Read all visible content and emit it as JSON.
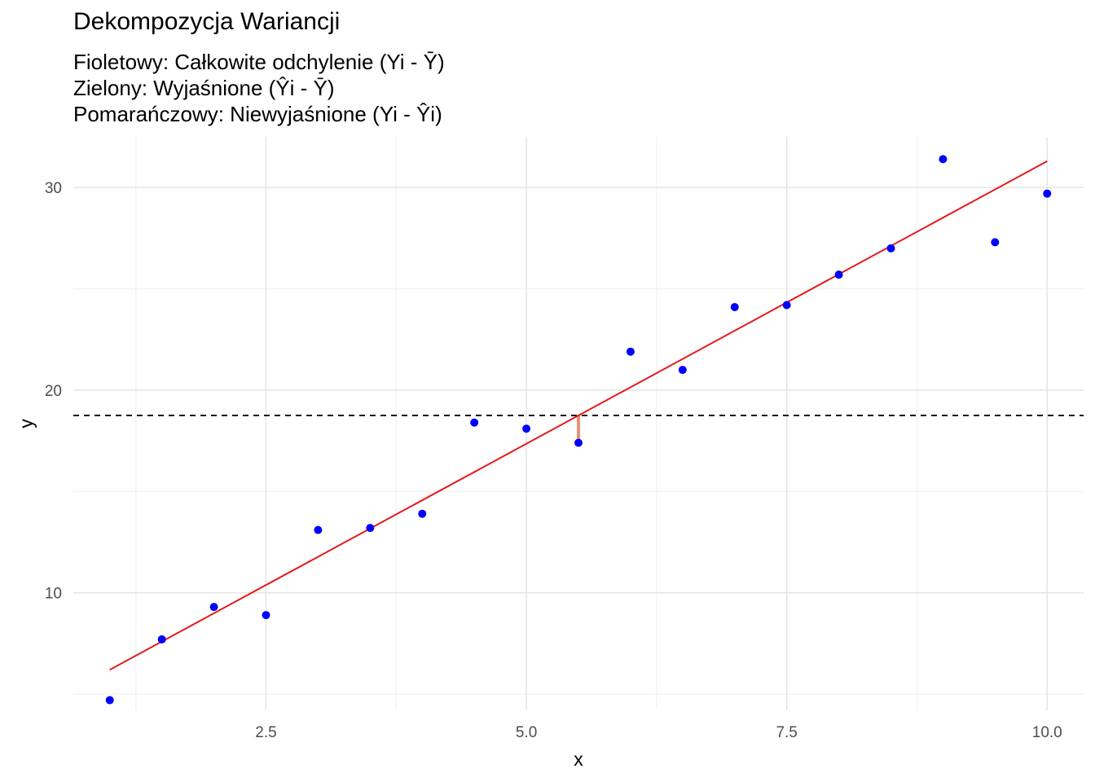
{
  "chart_data": {
    "type": "scatter",
    "title": "Dekompozycja Wariancji",
    "subtitle_lines": [
      "Fioletowy: Całkowite odchylenie (Yi - Ȳ)",
      "Zielony: Wyjaśnione (Ŷi - Ȳ)",
      "Pomarańczowy: Niewyjaśnione (Yi - Ŷi)"
    ],
    "xlabel": "x",
    "ylabel": "y",
    "xlim": [
      0.65,
      10.35
    ],
    "ylim": [
      4.2,
      32.5
    ],
    "x_ticks": [
      2.5,
      5.0,
      7.5,
      10.0
    ],
    "x_tick_labels": [
      "2.5",
      "5.0",
      "7.5",
      "10.0"
    ],
    "y_ticks": [
      10,
      20,
      30
    ],
    "y_tick_labels": [
      "10",
      "20",
      "30"
    ],
    "grid": true,
    "points": {
      "color": "#0000ff",
      "x": [
        1.0,
        1.5,
        2.0,
        2.5,
        3.0,
        3.5,
        4.0,
        4.5,
        5.0,
        5.5,
        6.0,
        6.5,
        7.0,
        7.5,
        8.0,
        8.5,
        9.0,
        9.5,
        10.0
      ],
      "y": [
        4.7,
        7.7,
        9.3,
        8.9,
        13.1,
        13.2,
        13.9,
        18.4,
        18.1,
        17.4,
        21.9,
        21.0,
        24.1,
        24.2,
        25.7,
        27.0,
        31.4,
        27.3,
        29.7
      ]
    },
    "regression_line": {
      "color": "#e41a1c",
      "x": [
        1.0,
        10.0
      ],
      "y": [
        6.2,
        31.3
      ]
    },
    "mean_line": {
      "color": "#000000",
      "style": "dashed",
      "y": 18.75
    },
    "residual_segment": {
      "color": "#e8917a",
      "x": 5.5,
      "y_from": 17.4,
      "y_to": 18.75
    }
  }
}
